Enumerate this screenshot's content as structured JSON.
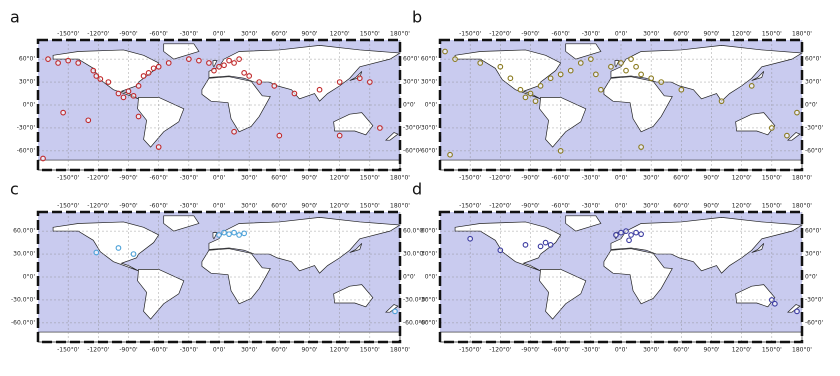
{
  "chart_data": [
    {
      "type": "scatter",
      "title": "a",
      "color": "#c0282a",
      "xlim": [
        -180,
        180
      ],
      "ylim": [
        -85,
        85
      ],
      "xticks": [
        {
          "value": -150,
          "label": "-150°0'"
        },
        {
          "value": -120,
          "label": "-120°0'"
        },
        {
          "value": -90,
          "label": "-90°0'"
        },
        {
          "value": -60,
          "label": "-60°0'"
        },
        {
          "value": -30,
          "label": "-30°0'"
        },
        {
          "value": 0,
          "label": "0°0'"
        },
        {
          "value": 30,
          "label": "30°0'"
        },
        {
          "value": 60,
          "label": "60°0'"
        },
        {
          "value": 90,
          "label": "90°0'"
        },
        {
          "value": 120,
          "label": "120°0'"
        },
        {
          "value": 150,
          "label": "150°0'"
        },
        {
          "value": 180,
          "label": "180°0'"
        }
      ],
      "yticks": [
        {
          "value": 60,
          "label": "60°0'"
        },
        {
          "value": 30,
          "label": "30°0'"
        },
        {
          "value": 0,
          "label": "0°0'"
        },
        {
          "value": -30,
          "label": "-30°0'"
        },
        {
          "value": -60,
          "label": "-60°0'"
        }
      ],
      "x": [
        -170,
        -160,
        -150,
        -140,
        -125,
        -122,
        -118,
        -110,
        -100,
        -95,
        -90,
        -85,
        -80,
        -75,
        -70,
        -65,
        -60,
        -50,
        -30,
        -20,
        -10,
        -5,
        0,
        5,
        10,
        15,
        20,
        25,
        30,
        40,
        55,
        75,
        100,
        120,
        140,
        150,
        160,
        -175,
        -155,
        -130,
        -80,
        -60,
        15,
        60,
        120
      ],
      "values": [
        60,
        55,
        58,
        55,
        45,
        38,
        34,
        30,
        15,
        10,
        18,
        12,
        25,
        38,
        42,
        48,
        50,
        55,
        60,
        58,
        55,
        45,
        50,
        52,
        58,
        55,
        60,
        42,
        38,
        30,
        25,
        15,
        20,
        30,
        35,
        30,
        -30,
        -70,
        -10,
        -20,
        -15,
        -55,
        -35,
        -40,
        -40
      ]
    },
    {
      "type": "scatter",
      "title": "b",
      "color": "#8a7a1e",
      "xlim": [
        -180,
        180
      ],
      "ylim": [
        -85,
        85
      ],
      "xticks": [
        {
          "value": -150,
          "label": "-150°0'"
        },
        {
          "value": -120,
          "label": "-120°0'"
        },
        {
          "value": -90,
          "label": "-90°0'"
        },
        {
          "value": -60,
          "label": "-60°0'"
        },
        {
          "value": -30,
          "label": "-30°0'"
        },
        {
          "value": 0,
          "label": "0°0'"
        },
        {
          "value": 30,
          "label": "30°0'"
        },
        {
          "value": 60,
          "label": "60°0'"
        },
        {
          "value": 90,
          "label": "90°0'"
        },
        {
          "value": 120,
          "label": "120°0'"
        },
        {
          "value": 150,
          "label": "150°0'"
        },
        {
          "value": 180,
          "label": "180°0'"
        }
      ],
      "yticks": [
        {
          "value": 60,
          "label": "60°0'"
        },
        {
          "value": 30,
          "label": "30°0'"
        },
        {
          "value": 0,
          "label": "0°0'"
        },
        {
          "value": -30,
          "label": "-30°0'"
        },
        {
          "value": -60,
          "label": "-60°0'"
        }
      ],
      "x": [
        -175,
        -165,
        -140,
        -120,
        -110,
        -100,
        -95,
        -90,
        -85,
        -80,
        -70,
        -60,
        -50,
        -40,
        -30,
        -25,
        -20,
        -10,
        0,
        5,
        10,
        15,
        20,
        30,
        40,
        60,
        100,
        130,
        150,
        165,
        175,
        -170,
        -60,
        20
      ],
      "values": [
        70,
        60,
        55,
        50,
        35,
        20,
        10,
        15,
        5,
        25,
        35,
        40,
        45,
        55,
        60,
        40,
        20,
        50,
        55,
        45,
        60,
        50,
        40,
        35,
        30,
        20,
        5,
        25,
        -30,
        -40,
        -10,
        -65,
        -60,
        -55
      ]
    },
    {
      "type": "scatter",
      "title": "c",
      "color": "#4aa0d8",
      "xlim": [
        -180,
        180
      ],
      "ylim": [
        -85,
        85
      ],
      "xticks": [
        {
          "value": -150,
          "label": "-150°0'"
        },
        {
          "value": -120,
          "label": "-120°0'"
        },
        {
          "value": -90,
          "label": "-90°0'"
        },
        {
          "value": -60,
          "label": "-60°0'"
        },
        {
          "value": -30,
          "label": "-30°0'"
        },
        {
          "value": 0,
          "label": "0°0'"
        },
        {
          "value": 30,
          "label": "30°0'"
        },
        {
          "value": 60,
          "label": "60°0'"
        },
        {
          "value": 90,
          "label": "90°0'"
        },
        {
          "value": 120,
          "label": "120°0'"
        },
        {
          "value": 150,
          "label": "150°0'"
        },
        {
          "value": 180,
          "label": "180°0'"
        }
      ],
      "yticks": [
        {
          "value": 60,
          "label": "60.0°0'"
        },
        {
          "value": 30,
          "label": "30.0°0'"
        },
        {
          "value": 0,
          "label": "0°0'"
        },
        {
          "value": -30,
          "label": "-30.0°0'"
        },
        {
          "value": -60,
          "label": "-60.0°0'"
        }
      ],
      "x": [
        -122,
        -100,
        -85,
        0,
        5,
        10,
        15,
        20,
        25,
        175
      ],
      "values": [
        32,
        38,
        30,
        55,
        58,
        56,
        58,
        55,
        57,
        -45
      ]
    },
    {
      "type": "scatter",
      "title": "d",
      "color": "#3a3aa0",
      "xlim": [
        -180,
        180
      ],
      "ylim": [
        -85,
        85
      ],
      "xticks": [
        {
          "value": -150,
          "label": "-150°0'"
        },
        {
          "value": -120,
          "label": "-120°0'"
        },
        {
          "value": -90,
          "label": "-90°0'"
        },
        {
          "value": -60,
          "label": "-60°0'"
        },
        {
          "value": -30,
          "label": "-30°0'"
        },
        {
          "value": 0,
          "label": "0°0'"
        },
        {
          "value": 30,
          "label": "30°0'"
        },
        {
          "value": 60,
          "label": "60°0'"
        },
        {
          "value": 90,
          "label": "90°0'"
        },
        {
          "value": 120,
          "label": "120°0'"
        },
        {
          "value": 150,
          "label": "150°0'"
        },
        {
          "value": 180,
          "label": "180°0'"
        }
      ],
      "yticks": [
        {
          "value": 60,
          "label": "60°0'"
        },
        {
          "value": 30,
          "label": "30°0'"
        },
        {
          "value": 0,
          "label": "0°0'"
        },
        {
          "value": -30,
          "label": "-30°0'"
        },
        {
          "value": -60,
          "label": "-60°0'"
        }
      ],
      "x": [
        -150,
        -120,
        -95,
        -80,
        -75,
        -70,
        -5,
        0,
        5,
        10,
        15,
        20,
        8,
        150,
        153,
        175
      ],
      "values": [
        50,
        35,
        42,
        40,
        45,
        42,
        55,
        58,
        60,
        55,
        58,
        56,
        48,
        -30,
        -35,
        -45
      ]
    }
  ]
}
